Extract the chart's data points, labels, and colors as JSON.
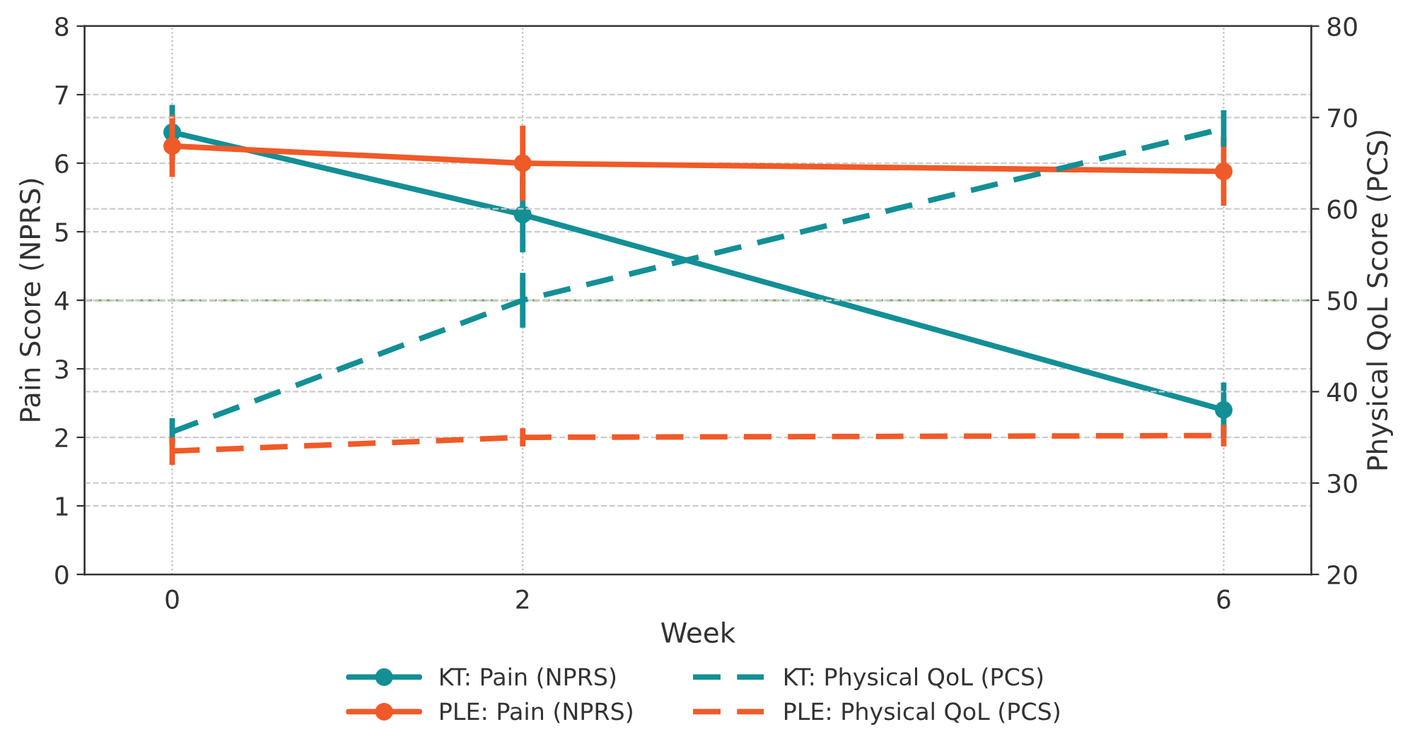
{
  "chart_data": {
    "type": "line",
    "xlabel": "Week",
    "ylabel": "Pain Score (NPRS)",
    "y2label": "Physical QoL Score (PCS)",
    "x": [
      0,
      2,
      6
    ],
    "xlim": [
      -0.5,
      6.5
    ],
    "xticks": [
      0,
      2,
      6
    ],
    "ylim": [
      0,
      8
    ],
    "yticks": [
      0,
      1,
      2,
      3,
      4,
      5,
      6,
      7,
      8
    ],
    "y2lim": [
      20,
      80
    ],
    "y2ticks": [
      20,
      30,
      40,
      50,
      60,
      70,
      80
    ],
    "grid": true,
    "legend": "bottom",
    "series": [
      {
        "name": "KT: Pain (NPRS)",
        "color": "#138f96",
        "values": [
          6.45,
          5.25,
          2.4
        ],
        "errors": [
          0.4,
          0.55,
          0.4
        ],
        "marker": "circle",
        "line_style": "solid"
      },
      {
        "name": "PLE: Pain (NPRS)",
        "color": "#f05a28",
        "values": [
          6.25,
          6.0,
          5.88
        ],
        "errors": [
          0.45,
          0.55,
          0.5
        ],
        "marker": "circle",
        "line_style": "solid"
      },
      {
        "name": "KT: Physical QoL (PCS)",
        "color": "#138f96",
        "values": [
          35.6,
          50,
          68.8
        ],
        "errors": [
          1.5,
          3,
          2
        ],
        "axis": "y2",
        "marker": "none",
        "line_style": "dashed"
      },
      {
        "name": "PLE: Physical QoL (PCS)",
        "color": "#f05a28",
        "values": [
          33.5,
          35,
          35.2
        ],
        "errors": [
          1.5,
          1,
          1.2
        ],
        "axis": "y2",
        "marker": "none",
        "line_style": "dashed"
      }
    ],
    "ref_lines": [
      {
        "axis": "y",
        "value": 4,
        "color": "#6aa84f",
        "line_style": "dashed"
      }
    ]
  }
}
